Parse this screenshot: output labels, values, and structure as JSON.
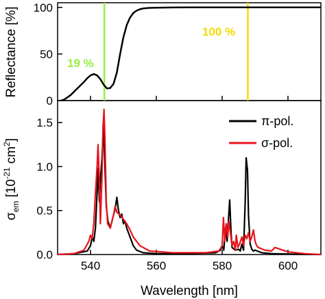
{
  "chart_data": [
    {
      "type": "line",
      "panel": "top",
      "ylabel": "Reflectance [%]",
      "xlim": [
        530,
        610
      ],
      "ylim": [
        0,
        105
      ],
      "yticks": [
        0,
        50,
        100
      ],
      "ytick_labels": [
        "0",
        "50",
        "100"
      ],
      "grid": false,
      "series": [
        {
          "color": "#000000",
          "x": [
            531,
            532,
            534,
            536,
            538,
            539,
            540,
            541,
            542,
            543,
            544,
            545,
            546,
            547,
            548,
            549,
            550,
            551,
            552,
            553,
            554,
            555,
            556,
            557,
            558,
            560,
            562,
            565,
            570,
            580,
            590,
            600,
            610
          ],
          "y": [
            0,
            1,
            6,
            13,
            20,
            24,
            27,
            28.5,
            27,
            23,
            17,
            13,
            13.5,
            18,
            30,
            50,
            68,
            81,
            89,
            94,
            96.5,
            98,
            98.8,
            99.2,
            99.5,
            99.7,
            99.8,
            99.9,
            100,
            100,
            100,
            100,
            100
          ]
        }
      ],
      "annotations": [
        {
          "text": "19 %",
          "x": 544.2,
          "color": "#99ee44"
        },
        {
          "text": "100 %",
          "x": 587.8,
          "color": "#f2dc00"
        }
      ]
    },
    {
      "type": "line",
      "panel": "bottom",
      "xlabel": "Wavelength [nm]",
      "ylabel_main": "σ",
      "ylabel_sub": "em",
      "ylabel_rest": " [10",
      "ylabel_exp": "-21",
      "ylabel_unit": " cm",
      "ylabel_exp2": "2",
      "ylabel_close": "]",
      "xlim": [
        530,
        610
      ],
      "ylim": [
        0,
        1.75
      ],
      "xticks": [
        540,
        560,
        580,
        600
      ],
      "xtick_labels": [
        "540",
        "560",
        "580",
        "600"
      ],
      "yticks": [
        0,
        0.5,
        1.0,
        1.5
      ],
      "ytick_labels": [
        "0.0",
        "0.5",
        "1.0",
        "1.5"
      ],
      "legend_position": "top-right",
      "grid": false,
      "series": [
        {
          "name": "π-pol.",
          "color": "#000000",
          "x": [
            530,
            535,
            539,
            540,
            540.5,
            541,
            541.5,
            542,
            542.3,
            542.7,
            543,
            543.5,
            543.9,
            544.3,
            544.8,
            545.3,
            546,
            547,
            547.5,
            548,
            548.5,
            549,
            549.5,
            550,
            550.5,
            551,
            552,
            553,
            554,
            556,
            560,
            570,
            578,
            579.5,
            580,
            580.5,
            581,
            581.5,
            582,
            582.3,
            582.7,
            583,
            584,
            585,
            585.5,
            586,
            586.5,
            587,
            587.3,
            587.7,
            588,
            588.5,
            589,
            589.5,
            590,
            592,
            595,
            600,
            610
          ],
          "y": [
            0,
            0.01,
            0.04,
            0.1,
            0.2,
            0.15,
            0.3,
            0.7,
            0.98,
            0.6,
            0.85,
            1.1,
            1.45,
            1.1,
            0.55,
            0.38,
            0.3,
            0.45,
            0.52,
            0.65,
            0.5,
            0.42,
            0.46,
            0.35,
            0.38,
            0.3,
            0.2,
            0.1,
            0.05,
            0.02,
            0.01,
            0.01,
            0.02,
            0.05,
            0.1,
            0.05,
            0.3,
            0.15,
            0.45,
            0.62,
            0.25,
            0.08,
            0.05,
            0.06,
            0.04,
            0.12,
            0.05,
            0.6,
            1.1,
            0.95,
            0.45,
            0.12,
            0.06,
            0.04,
            0.05,
            0.02,
            0.01,
            0.005,
            0
          ]
        },
        {
          "name": "σ-pol.",
          "color": "#e8141c",
          "x": [
            530,
            535,
            538,
            539.5,
            540,
            540.5,
            541,
            541.5,
            542,
            542.3,
            542.7,
            543,
            543.5,
            543.8,
            544.1,
            544.4,
            544.8,
            545.2,
            546,
            546.5,
            547,
            547.5,
            548,
            549,
            550,
            551,
            552,
            553,
            555,
            558,
            565,
            575,
            579,
            580,
            580.4,
            580.8,
            581.2,
            581.7,
            582,
            582.5,
            583,
            583.5,
            584,
            584.3,
            584.8,
            585.3,
            586,
            586.5,
            587,
            587.5,
            588,
            588.5,
            589,
            589.5,
            590,
            590.5,
            591,
            593,
            595,
            596,
            600,
            605,
            610
          ],
          "y": [
            0,
            0.01,
            0.05,
            0.15,
            0.22,
            0.18,
            0.35,
            0.7,
            1.0,
            1.25,
            0.8,
            0.35,
            0.9,
            1.45,
            1.65,
            1.3,
            0.6,
            0.35,
            0.3,
            0.38,
            0.45,
            0.55,
            0.48,
            0.45,
            0.4,
            0.35,
            0.28,
            0.2,
            0.1,
            0.04,
            0.02,
            0.02,
            0.04,
            0.1,
            0.42,
            0.15,
            0.35,
            0.2,
            0.38,
            0.25,
            0.1,
            0.15,
            0.05,
            0.22,
            0.08,
            0.12,
            0.2,
            0.1,
            0.22,
            0.18,
            0.25,
            0.15,
            0.2,
            0.28,
            0.15,
            0.1,
            0.08,
            0.05,
            0.04,
            0.08,
            0.03,
            0.01,
            0
          ]
        }
      ]
    }
  ]
}
